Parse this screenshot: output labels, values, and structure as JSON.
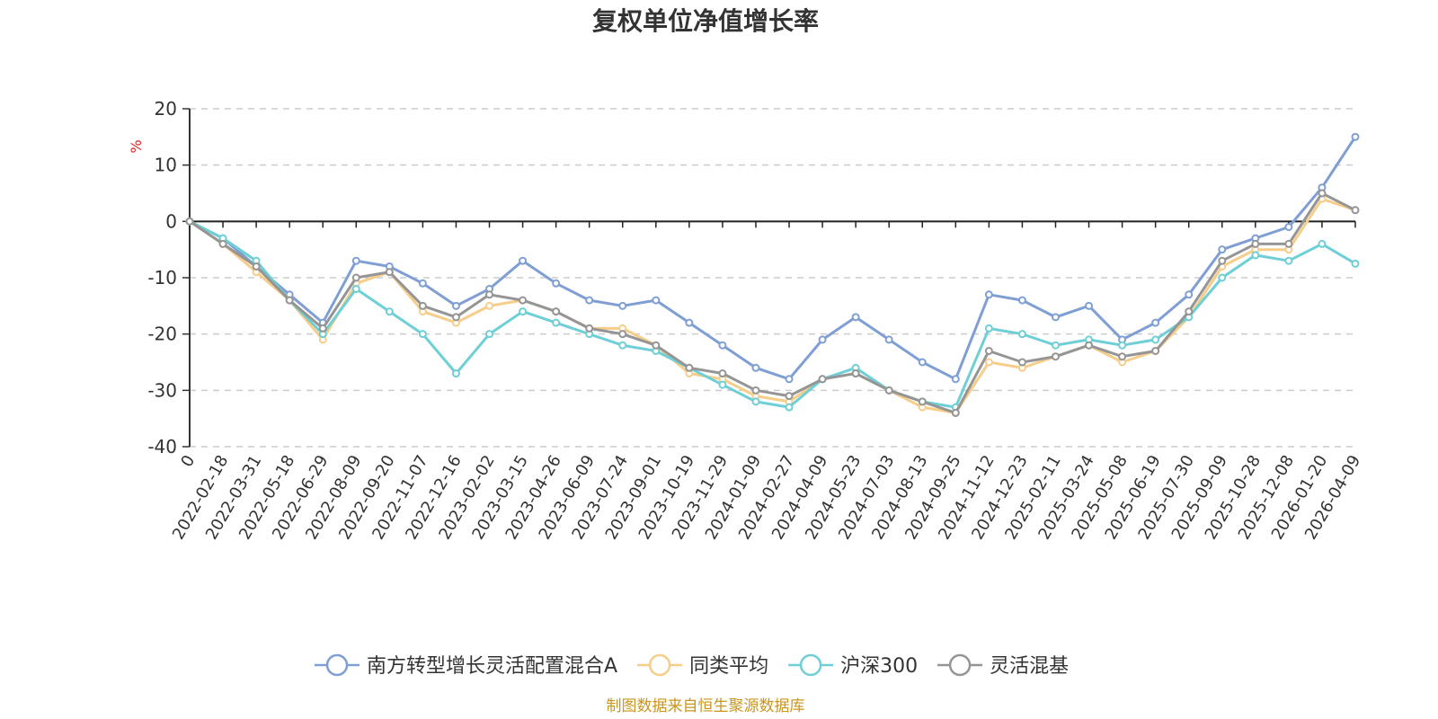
{
  "chart_data": {
    "type": "line",
    "title": "复权单位净值增长率",
    "y_unit": "%",
    "ylim": [
      -40,
      20
    ],
    "y_ticks": [
      "20",
      "10",
      "0",
      "-10",
      "-20",
      "-30",
      "-40"
    ],
    "grid": true,
    "legend_position": "bottom",
    "source_note": "制图数据来自恒生聚源数据库",
    "x_tick_labels": [
      "0",
      "2022-02-18",
      "2022-03-31",
      "2022-05-18",
      "2022-06-29",
      "2022-08-09",
      "2022-09-20",
      "2022-11-07",
      "2022-12-16",
      "2023-02-02",
      "2023-03-15",
      "2023-04-26",
      "2023-06-09",
      "2023-07-24",
      "2023-09-01",
      "2023-10-19",
      "2023-11-29",
      "2024-01-09",
      "2024-02-27",
      "2024-04-09",
      "2024-05-23",
      "2024-07-03",
      "2024-08-13",
      "2024-09-25",
      "2024-11-12",
      "2024-12-23",
      "2025-02-11",
      "2025-03-24",
      "2025-05-08",
      "2025-06-19",
      "2025-07-30",
      "2025-09-09",
      "2025-10-28",
      "2025-12-08",
      "2026-01-20",
      "2026-04-09"
    ],
    "series": [
      {
        "name": "南方转型增长灵活配置混合A",
        "color": "#7f9fd4",
        "values": [
          0,
          -3,
          -8,
          -13,
          -18,
          -7,
          -8,
          -11,
          -15,
          -12,
          -7,
          -11,
          -14,
          -15,
          -14,
          -18,
          -22,
          -26,
          -28,
          -21,
          -17,
          -21,
          -25,
          -28,
          -13,
          -14,
          -17,
          -15,
          -21,
          -18,
          -13,
          -5,
          -3,
          -1,
          6,
          15
        ]
      },
      {
        "name": "同类平均",
        "color": "#f7cd8a",
        "values": [
          0,
          -4,
          -9,
          -14,
          -21,
          -11,
          -9,
          -16,
          -18,
          -15,
          -14,
          -16,
          -19,
          -19,
          -22,
          -27,
          -28,
          -31,
          -32,
          -28,
          -27,
          -30,
          -33,
          -34,
          -25,
          -26,
          -24,
          -22,
          -25,
          -23,
          -17,
          -8,
          -5,
          -5,
          4,
          2
        ]
      },
      {
        "name": "沪深300",
        "color": "#6fcfd6",
        "values": [
          0,
          -3,
          -7,
          -14,
          -20,
          -12,
          -16,
          -20,
          -27,
          -20,
          -16,
          -18,
          -20,
          -22,
          -23,
          -26,
          -29,
          -32,
          -33,
          -28,
          -26,
          -30,
          -32,
          -33,
          -19,
          -20,
          -22,
          -21,
          -22,
          -21,
          -17,
          -10,
          -6,
          -7,
          -4,
          -7.5
        ]
      },
      {
        "name": "灵活混基",
        "color": "#959595",
        "values": [
          0,
          -4,
          -8,
          -14,
          -19,
          -10,
          -9,
          -15,
          -17,
          -13,
          -14,
          -16,
          -19,
          -20,
          -22,
          -26,
          -27,
          -30,
          -31,
          -28,
          -27,
          -30,
          -32,
          -34,
          -23,
          -25,
          -24,
          -22,
          -24,
          -23,
          -16,
          -7,
          -4,
          -4,
          5,
          2
        ]
      }
    ]
  }
}
